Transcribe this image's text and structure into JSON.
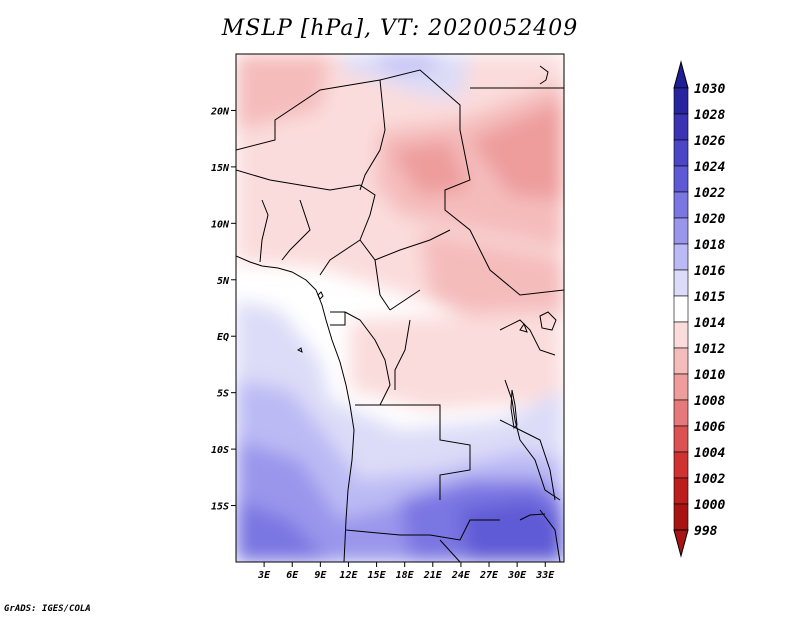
{
  "title": "MSLP [hPa], VT: 2020052409",
  "credit": "GrADS: IGES/COLA",
  "map": {
    "variable": "MSLP",
    "units": "hPa",
    "valid_time": "2020052409",
    "lon_range": [
      0,
      35
    ],
    "lat_range": [
      -20,
      25
    ],
    "lat_ticks": [
      {
        "label": "20N",
        "lat": 20
      },
      {
        "label": "15N",
        "lat": 15
      },
      {
        "label": "10N",
        "lat": 10
      },
      {
        "label": "5N",
        "lat": 5
      },
      {
        "label": "EQ",
        "lat": 0
      },
      {
        "label": "5S",
        "lat": -5
      },
      {
        "label": "10S",
        "lat": -10
      },
      {
        "label": "15S",
        "lat": -15
      }
    ],
    "lon_ticks": [
      {
        "label": "3E",
        "lon": 3
      },
      {
        "label": "6E",
        "lon": 6
      },
      {
        "label": "9E",
        "lon": 9
      },
      {
        "label": "12E",
        "lon": 12
      },
      {
        "label": "15E",
        "lon": 15
      },
      {
        "label": "18E",
        "lon": 18
      },
      {
        "label": "21E",
        "lon": 21
      },
      {
        "label": "24E",
        "lon": 24
      },
      {
        "label": "27E",
        "lon": 27
      },
      {
        "label": "30E",
        "lon": 30
      },
      {
        "label": "33E",
        "lon": 33
      }
    ]
  },
  "colorbar": {
    "levels": [
      {
        "label": "1030",
        "color": "#1e1e96"
      },
      {
        "label": "1028",
        "color": "#28249f"
      },
      {
        "label": "1026",
        "color": "#3a34b4"
      },
      {
        "label": "1024",
        "color": "#4a46c6"
      },
      {
        "label": "1022",
        "color": "#5e5ad6"
      },
      {
        "label": "1020",
        "color": "#7a76e2"
      },
      {
        "label": "1018",
        "color": "#9a96ec"
      },
      {
        "label": "1016",
        "color": "#bcbaf4"
      },
      {
        "label": "1015",
        "color": "#dcdcf8"
      },
      {
        "label": "1014",
        "color": "#ffffff"
      },
      {
        "label": "1012",
        "color": "#fbdcdc"
      },
      {
        "label": "1010",
        "color": "#f5bcbc"
      },
      {
        "label": "1008",
        "color": "#ee9c9c"
      },
      {
        "label": "1006",
        "color": "#e67a7a"
      },
      {
        "label": "1004",
        "color": "#dc5252"
      },
      {
        "label": "1002",
        "color": "#d03232"
      },
      {
        "label": "1000",
        "color": "#bc1e1e"
      },
      {
        "label": "998",
        "color": "#a81414"
      }
    ],
    "top_color": "#1e1e96",
    "bottom_color": "#a81414"
  }
}
